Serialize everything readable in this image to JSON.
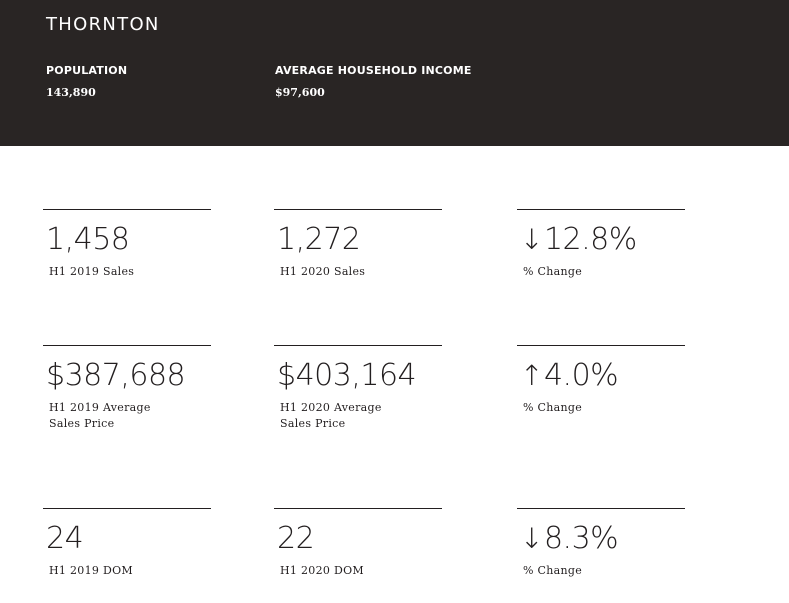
{
  "header": {
    "city": "THORNTON",
    "population_label": "POPULATION",
    "population_value": "143,890",
    "income_label": "AVERAGE HOUSEHOLD INCOME",
    "income_value": "$97,600"
  },
  "stats": {
    "sales": {
      "h1_2019_value": "1,458",
      "h1_2019_label": "H1 2019 Sales",
      "h1_2020_value": "1,272",
      "h1_2020_label": "H1 2020 Sales",
      "change_direction": "down",
      "change_arrow": "↓",
      "change_value": "12.8%",
      "change_label": "% Change"
    },
    "price": {
      "h1_2019_value": "$387,688",
      "h1_2019_label_line1": "H1 2019 Average",
      "h1_2019_label_line2": "Sales Price",
      "h1_2020_value": "$403,164",
      "h1_2020_label_line1": "H1 2020 Average",
      "h1_2020_label_line2": "Sales Price",
      "change_direction": "up",
      "change_arrow": "↑",
      "change_value": "4.0%",
      "change_label": "% Change"
    },
    "dom": {
      "h1_2019_value": "24",
      "h1_2019_label": "H1 2019 DOM",
      "h1_2020_value": "22",
      "h1_2020_label": "H1 2020 DOM",
      "change_direction": "down",
      "change_arrow": "↓",
      "change_value": "8.3%",
      "change_label": "% Change"
    }
  },
  "colors": {
    "header_bg": "#292524",
    "text": "#231f20",
    "header_text": "#ffffff"
  }
}
